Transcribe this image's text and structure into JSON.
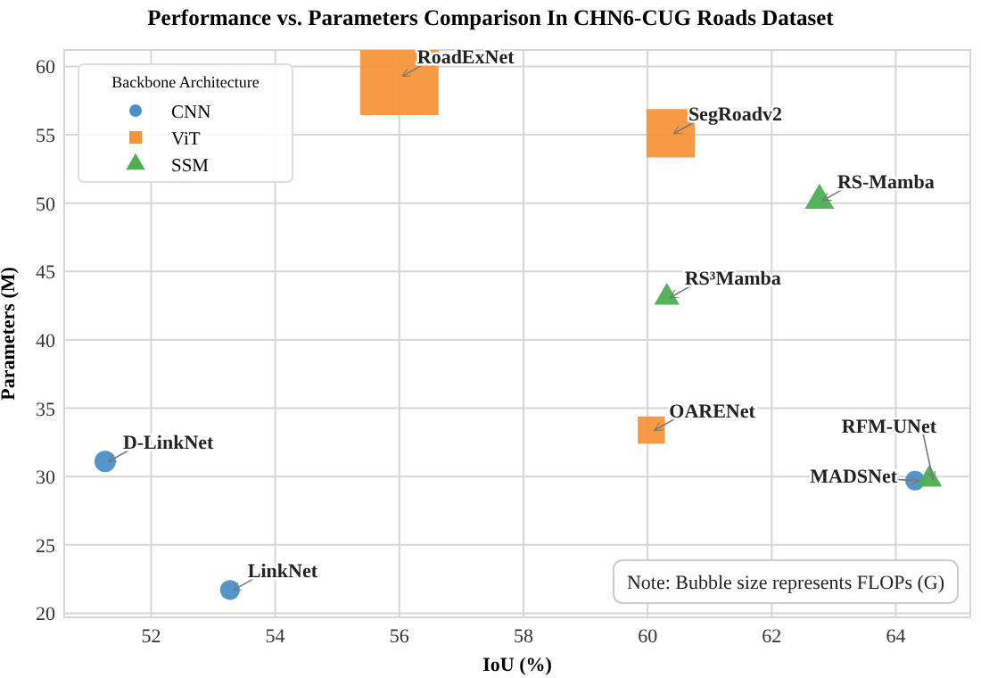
{
  "chart_data": {
    "type": "bubble",
    "title": "Performance vs. Parameters Comparison In CHN6-CUG Roads Dataset",
    "xlabel": "IoU (%)",
    "ylabel": "Parameters (M)",
    "legend_title": "Backbone Architecture",
    "xlim": [
      50.6,
      65.2
    ],
    "xticks": [
      52,
      54,
      56,
      58,
      60,
      62,
      64
    ],
    "ylim": [
      19.7,
      61.2
    ],
    "yticks": [
      20,
      25,
      30,
      35,
      40,
      45,
      50,
      55,
      60
    ],
    "grid": true,
    "legend": "top left",
    "series": [
      {
        "name": "CNN",
        "color": "#4a90c8",
        "marker": "circle",
        "x": [
          51.26,
          53.27,
          64.31
        ],
        "values": [
          31.1,
          21.7,
          29.7
        ],
        "sizes": [
          0.074,
          0.063,
          0.063
        ]
      },
      {
        "name": "ViT",
        "color": "#f5953b",
        "marker": "square",
        "x": [
          56.0,
          60.37,
          60.06
        ],
        "values": [
          59.3,
          55.1,
          33.4
        ],
        "sizes": [
          1,
          0.38,
          0.12
        ]
      },
      {
        "name": "SSM",
        "color": "#4caf50",
        "marker": "triangle",
        "x": [
          62.77,
          60.31,
          64.54
        ],
        "values": [
          50.2,
          43.1,
          29.8
        ],
        "sizes": [
          0.06,
          0.045,
          0.045
        ]
      }
    ],
    "annotations": [
      {
        "text": "D-LinkNet",
        "x": 51.26,
        "y": 31.1
      },
      {
        "text": "LinkNet",
        "x": 53.27,
        "y": 21.7
      },
      {
        "text": "MADSNet",
        "x": 64.31,
        "y": 29.7
      },
      {
        "text": "RoadExNet",
        "x": 56.0,
        "y": 59.3
      },
      {
        "text": "SegRoadv2",
        "x": 60.37,
        "y": 55.1
      },
      {
        "text": "OARENet",
        "x": 60.06,
        "y": 33.4
      },
      {
        "text": "RS-Mamba",
        "x": 62.77,
        "y": 50.2
      },
      {
        "text": "RS³Mamba",
        "x": 60.31,
        "y": 43.1
      },
      {
        "text": "RFM-UNet",
        "x": 64.54,
        "y": 29.8
      },
      "Note: Bubble size represents FLOPs (G)"
    ]
  }
}
